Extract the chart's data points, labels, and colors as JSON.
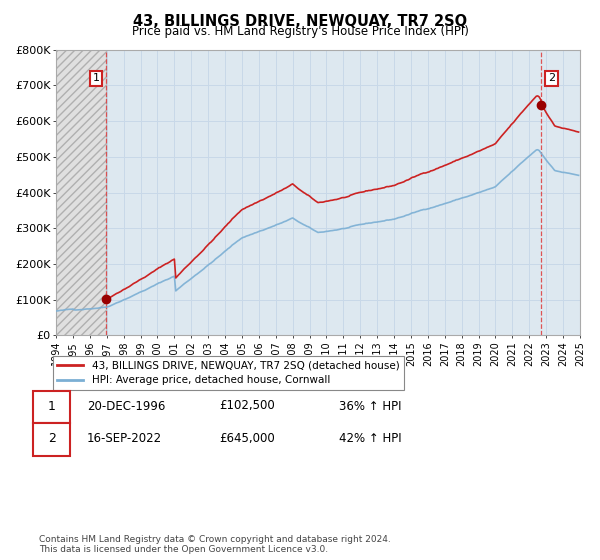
{
  "title": "43, BILLINGS DRIVE, NEWQUAY, TR7 2SQ",
  "subtitle": "Price paid vs. HM Land Registry's House Price Index (HPI)",
  "ylim": [
    0,
    800000
  ],
  "yticks": [
    0,
    100000,
    200000,
    300000,
    400000,
    500000,
    600000,
    700000,
    800000
  ],
  "ytick_labels": [
    "£0",
    "£100K",
    "£200K",
    "£300K",
    "£400K",
    "£500K",
    "£600K",
    "£700K",
    "£800K"
  ],
  "hpi_color": "#7bafd4",
  "price_color": "#cc2222",
  "marker_color": "#990000",
  "grid_color": "#c8d8e8",
  "plot_bg_color": "#dde8f0",
  "hatch_bg_color": "#e8e8e8",
  "transaction1_date": "20-DEC-1996",
  "transaction1_price": 102500,
  "transaction1_hpi": "36% ↑ HPI",
  "transaction1_year": 1996.96,
  "transaction2_date": "16-SEP-2022",
  "transaction2_price": 645000,
  "transaction2_hpi": "42% ↑ HPI",
  "transaction2_year": 2022.71,
  "legend_label1": "43, BILLINGS DRIVE, NEWQUAY, TR7 2SQ (detached house)",
  "legend_label2": "HPI: Average price, detached house, Cornwall",
  "footnote": "Contains HM Land Registry data © Crown copyright and database right 2024.\nThis data is licensed under the Open Government Licence v3.0.",
  "background_color": "#ffffff",
  "xmin": 1994.0,
  "xmax": 2025.0
}
